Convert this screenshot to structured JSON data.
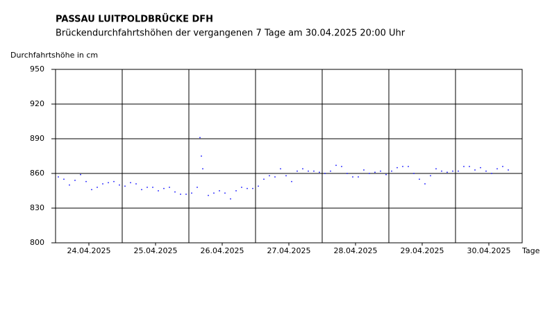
{
  "chart_data": {
    "type": "scatter",
    "title": "PASSAU LUITPOLDBRÜCKE DFH",
    "subtitle": "Brückendurchfahrtshöhen der vergangenen 7 Tage am 30.04.2025 20:00 Uhr",
    "y_label": "Durchfahrtshöhe in cm",
    "x_label": "Tage",
    "xlim": [
      0,
      168
    ],
    "xticks": [
      {
        "value": 12,
        "label": "24.04.2025"
      },
      {
        "value": 36,
        "label": "25.04.2025"
      },
      {
        "value": 60,
        "label": "26.04.2025"
      },
      {
        "value": 84,
        "label": "27.04.2025"
      },
      {
        "value": 108,
        "label": "28.04.2025"
      },
      {
        "value": 132,
        "label": "29.04.2025"
      },
      {
        "value": 156,
        "label": "30.04.2025"
      }
    ],
    "ylim": [
      800,
      950
    ],
    "yticks": [
      800,
      830,
      860,
      890,
      920,
      950
    ],
    "grid": true,
    "color": "#0000ff",
    "x": [
      1,
      3,
      5,
      7,
      9,
      11,
      13,
      15,
      17,
      19,
      21,
      23,
      25,
      27,
      29,
      31,
      33,
      35,
      37,
      39,
      41,
      43,
      45,
      47,
      49,
      51,
      52,
      52.5,
      53,
      55,
      57,
      59,
      61,
      63,
      65,
      67,
      69,
      71,
      73,
      75,
      77,
      79,
      81,
      83,
      85,
      87,
      89,
      91,
      93,
      95,
      97,
      99,
      101,
      103,
      105,
      107,
      109,
      111,
      113,
      115,
      117,
      119,
      121,
      123,
      125,
      127,
      129,
      131,
      133,
      135,
      137,
      139,
      141,
      143,
      145,
      147,
      149,
      151,
      153,
      155,
      157,
      159,
      161,
      163
    ],
    "values": [
      857,
      855,
      850,
      854,
      859,
      853,
      846,
      848,
      851,
      852,
      853,
      850,
      849,
      852,
      851,
      846,
      848,
      848,
      845,
      847,
      848,
      844,
      842,
      842,
      843,
      848,
      891,
      875,
      864,
      841,
      843,
      845,
      843,
      838,
      845,
      848,
      847,
      847,
      849,
      855,
      858,
      857,
      864,
      858,
      853,
      862,
      864,
      862,
      862,
      861,
      860,
      862,
      867,
      866,
      860,
      857,
      857,
      863,
      860,
      861,
      862,
      859,
      862,
      865,
      866,
      866,
      860,
      855,
      851,
      858,
      864,
      862,
      861,
      862,
      862,
      866,
      866,
      863,
      865,
      862,
      860,
      864,
      866,
      863
    ]
  }
}
